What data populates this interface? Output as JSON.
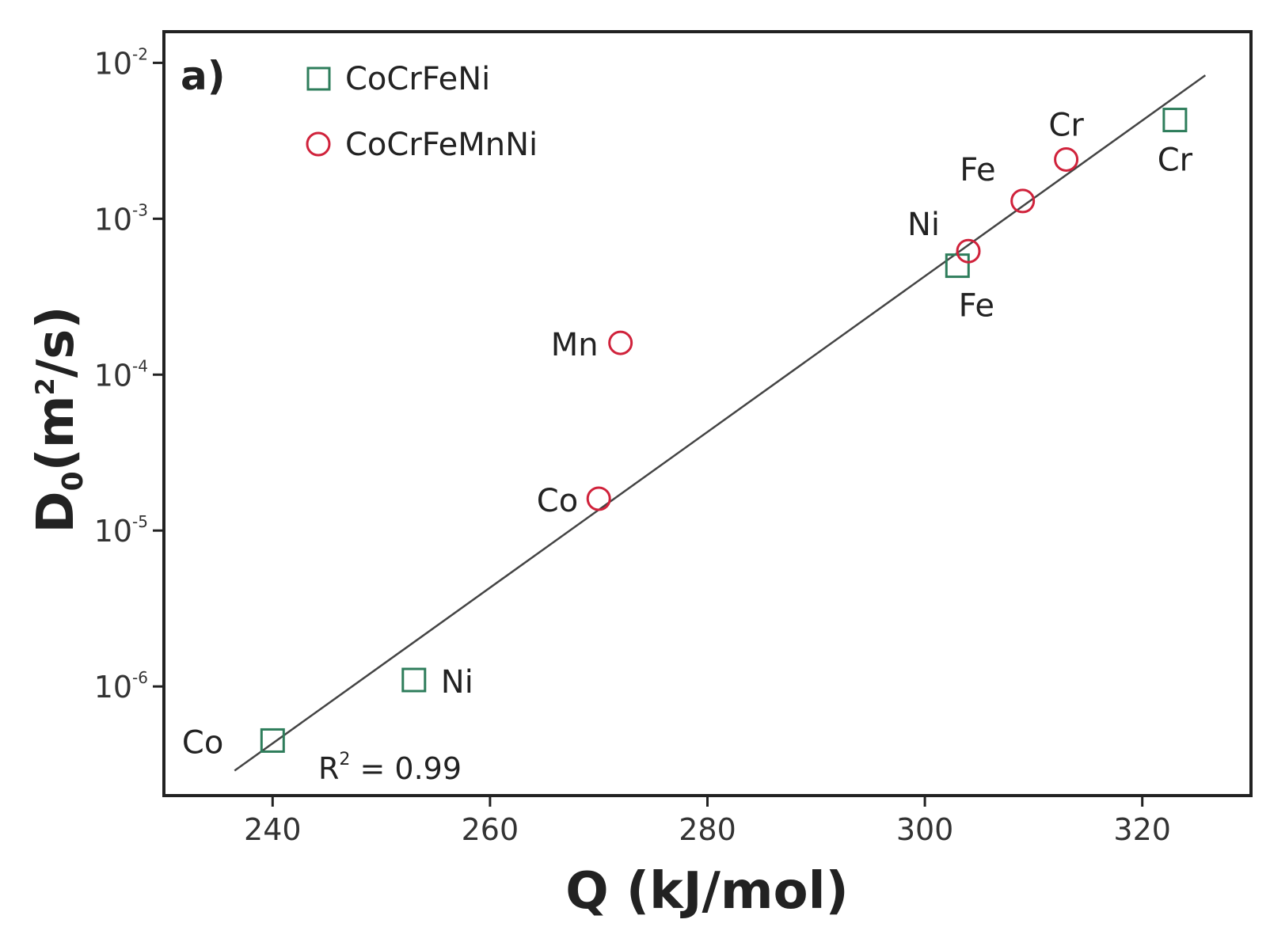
{
  "chart_data": {
    "type": "scatter",
    "panel_label": "a)",
    "xlabel": "Q (kJ/mol)",
    "ylabel_main": "D",
    "ylabel_sub": "0",
    "ylabel_open": "(m",
    "ylabel_sup": "2",
    "ylabel_close": "/s)",
    "xlim": [
      230,
      330
    ],
    "ylim_log10": [
      -6.7,
      -1.8
    ],
    "x_ticks": [
      240,
      260,
      280,
      300,
      320
    ],
    "x_tick_labels": [
      "240",
      "260",
      "280",
      "300",
      "320"
    ],
    "y_ticks": [
      -6,
      -5,
      -4,
      -3,
      -2
    ],
    "y_tick_base": "10",
    "y_tick_exponents": [
      "-6",
      "-5",
      "-4",
      "-3",
      "-2"
    ],
    "colors": {
      "CoCrFeNi": "#2e7d5b",
      "CoCrFeMnNi": "#d0223b",
      "fit": "#444444",
      "axis": "#222222"
    },
    "series": [
      {
        "name": "CoCrFeNi",
        "marker": "square",
        "points": [
          {
            "label": "Co",
            "x": 240.0,
            "y": 4.5e-07
          },
          {
            "label": "Ni",
            "x": 253.0,
            "y": 1.1e-06
          },
          {
            "label": "Fe",
            "x": 303.0,
            "y": 0.0005
          },
          {
            "label": "Cr",
            "x": 323.0,
            "y": 0.0043
          }
        ]
      },
      {
        "name": "CoCrFeMnNi",
        "marker": "circle",
        "points": [
          {
            "label": "Co",
            "x": 270.0,
            "y": 1.6e-05
          },
          {
            "label": "Mn",
            "x": 272.0,
            "y": 0.00016
          },
          {
            "label": "Ni",
            "x": 304.0,
            "y": 0.00062
          },
          {
            "label": "Fe",
            "x": 309.0,
            "y": 0.0013
          },
          {
            "label": "Cr",
            "x": 313.0,
            "y": 0.0024
          }
        ]
      }
    ],
    "fit_line": {
      "x": [
        236.5,
        325.8
      ],
      "log10y": [
        -6.54,
        -2.08
      ]
    },
    "annotation": {
      "text_base": "R",
      "text_sup": "2",
      "text_rest": " = 0.99"
    }
  }
}
